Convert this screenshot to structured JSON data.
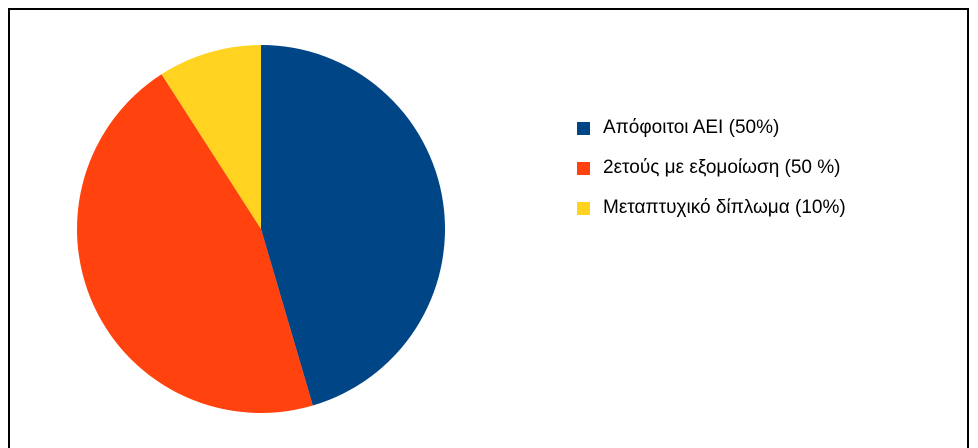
{
  "chart_data": {
    "type": "pie",
    "categories": [
      "Απόφοιτοι ΑΕΙ (50%)",
      "2ετούς με εξομοίωση (50 %)",
      "Μεταπτυχικό δίπλωμα (10%)"
    ],
    "values": [
      50,
      50,
      10
    ],
    "colors": [
      "#004586",
      "#ff420e",
      "#ffd320"
    ],
    "legend": "right"
  }
}
